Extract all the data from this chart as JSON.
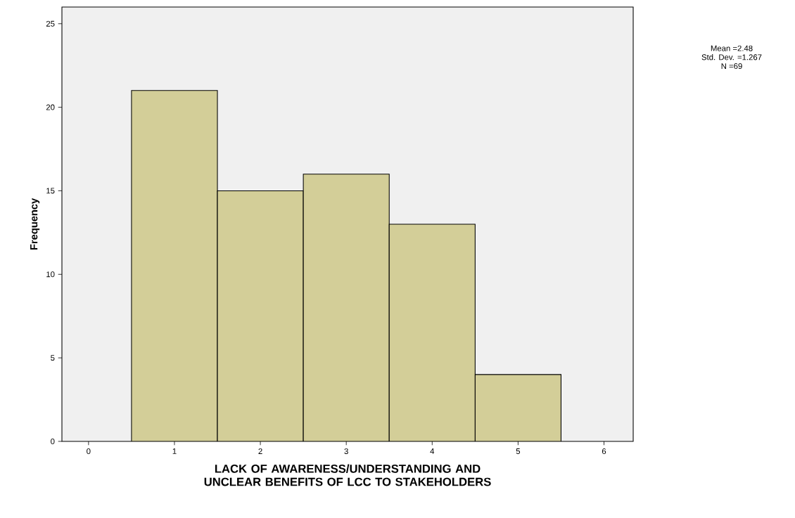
{
  "chart_data": {
    "type": "histogram",
    "xlabel": "LACK OF AWARENESS/UNDERSTANDING AND UNCLEAR BENEFITS OF LCC TO STAKEHOLDERS",
    "ylabel": "Frequency",
    "bins": [
      0.5,
      1.5,
      2.5,
      3.5,
      4.5,
      5.5
    ],
    "values": [
      21,
      15,
      16,
      13,
      4
    ],
    "color": "#d3ce98",
    "xlim": [
      -0.31,
      6.34
    ],
    "ylim": [
      0,
      26
    ],
    "xticks": [
      0,
      1,
      2,
      3,
      4,
      5,
      6
    ],
    "yticks": [
      0,
      5,
      10,
      15,
      20,
      25
    ],
    "annotations": [
      "Mean =2.48",
      "Std. Dev. =1.267",
      "N =69"
    ]
  }
}
